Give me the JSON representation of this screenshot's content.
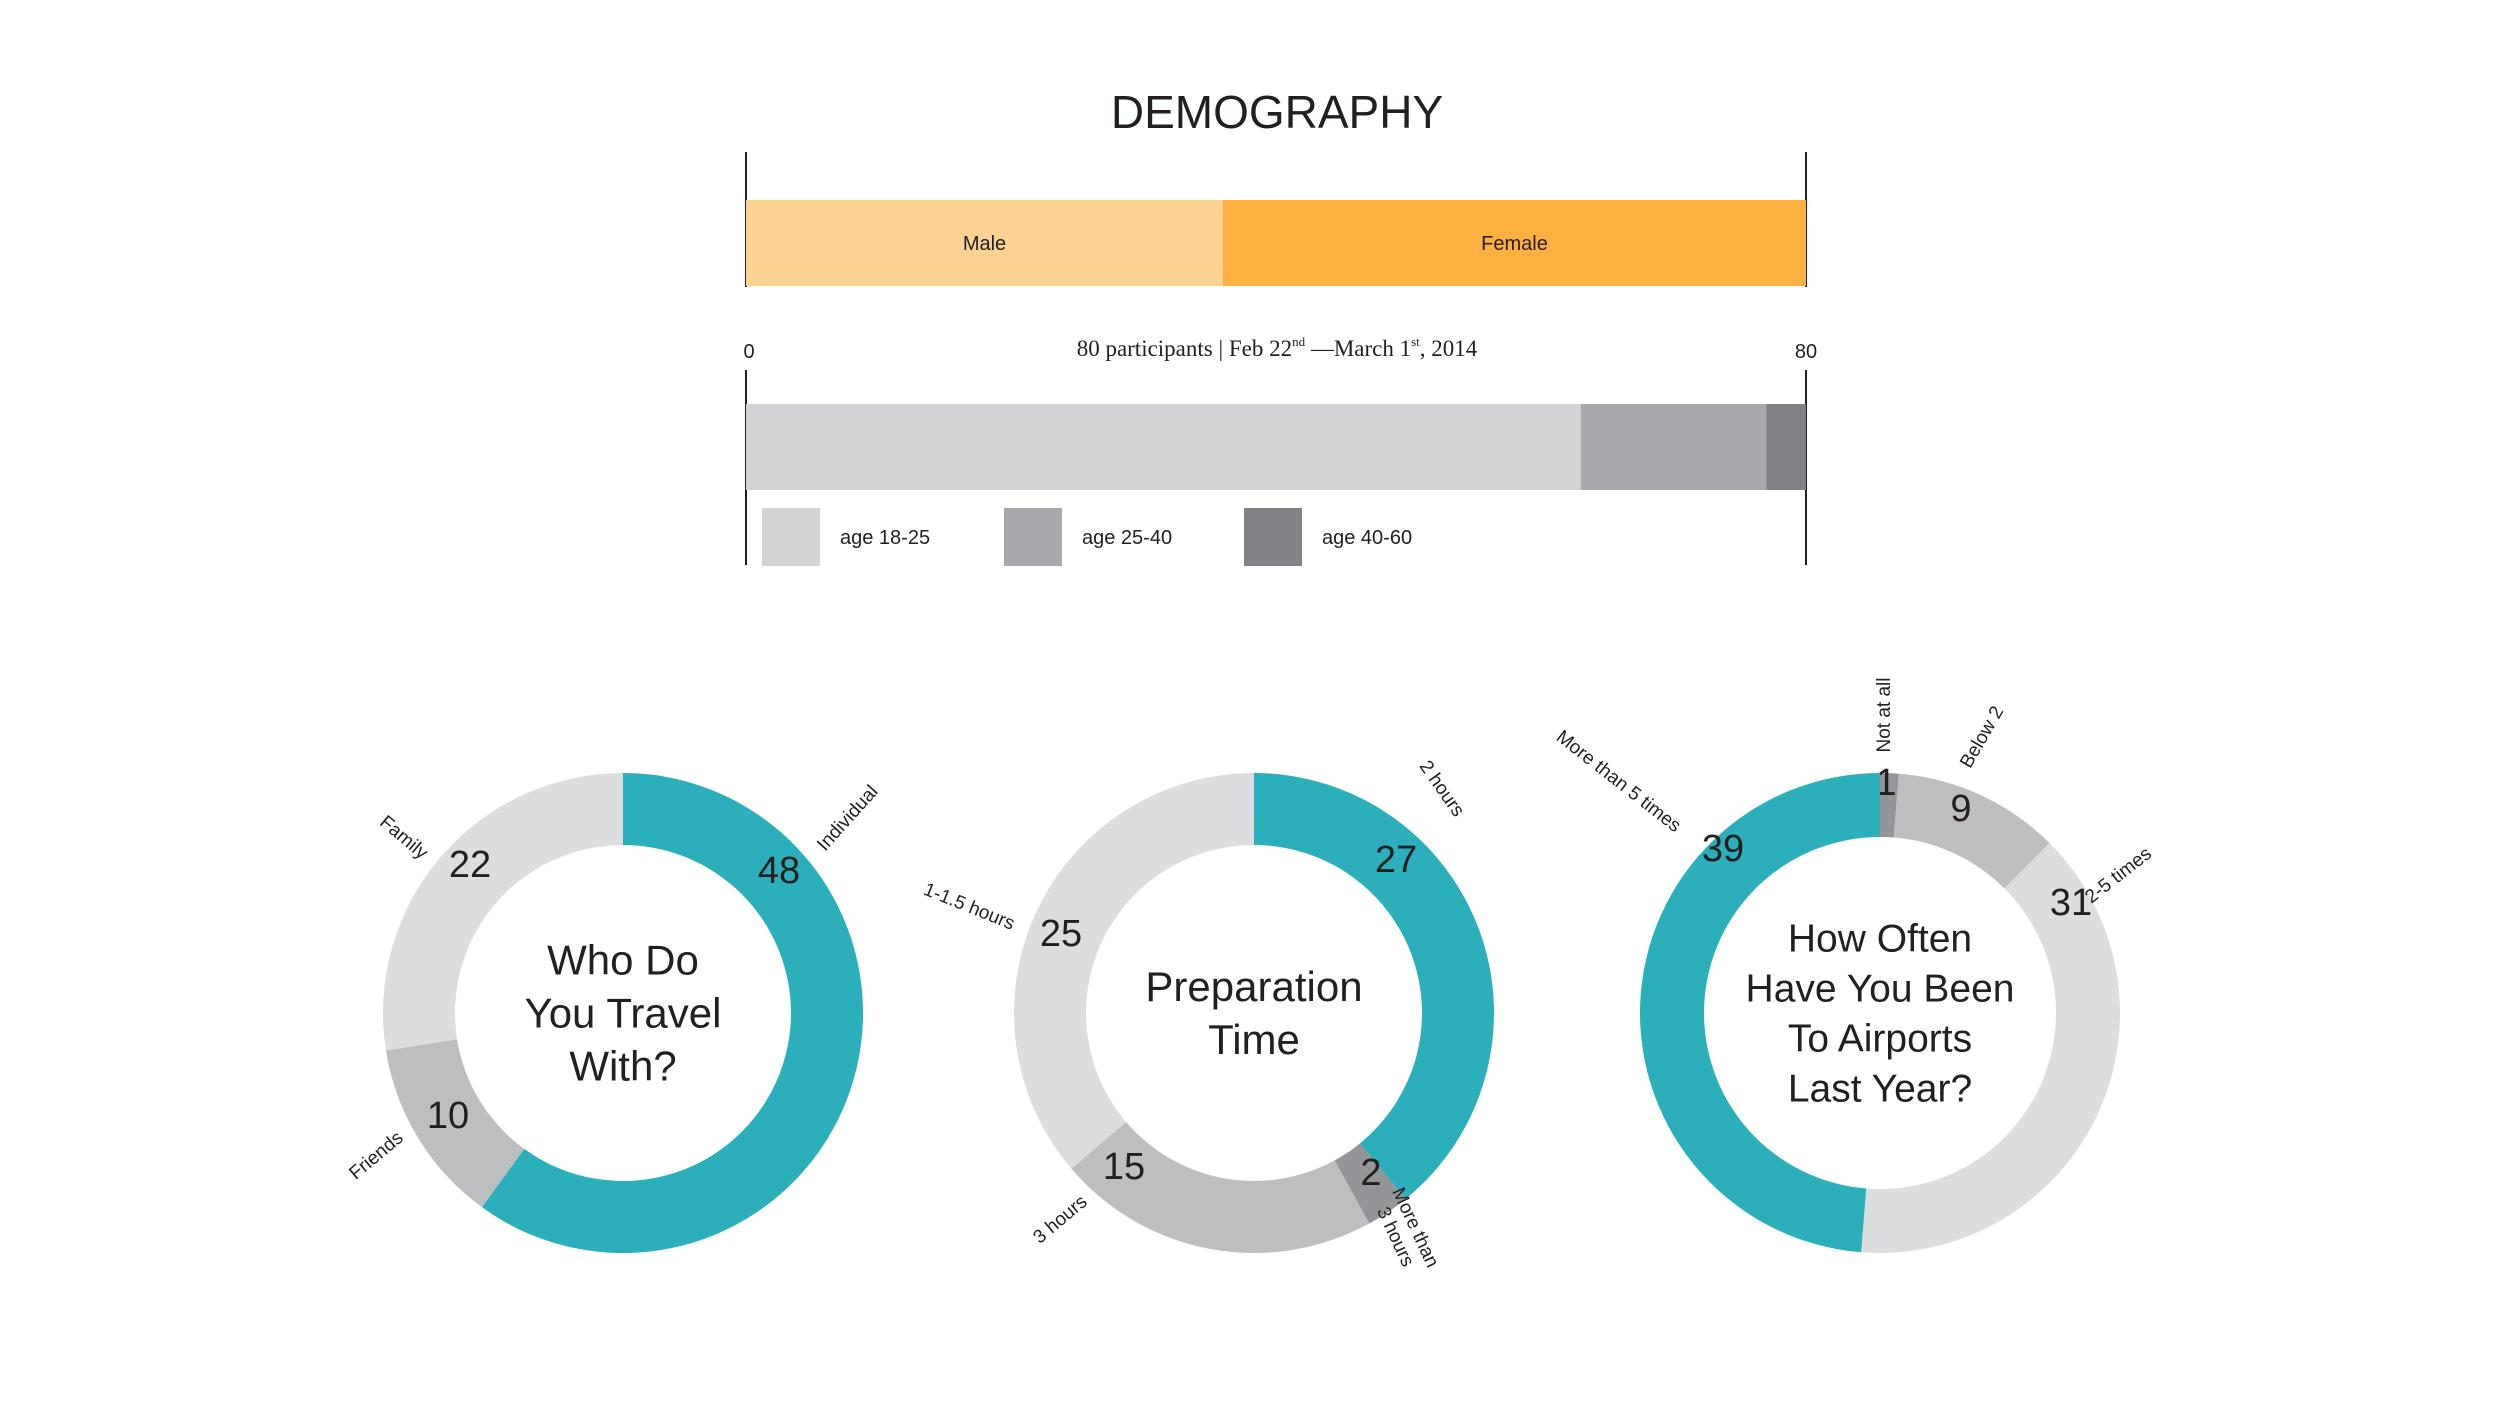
{
  "colors": {
    "male": "#fcd293",
    "female": "#fbb040",
    "age_18_25": "#d1d3d4",
    "age_25_40": "#a7a9ac",
    "age_40_60": "#808285",
    "teal": "#2aafbb",
    "light_gray": "#dcddde",
    "mid_gray": "#bcbec0",
    "dark_gray": "#939598",
    "text": "#231f20"
  },
  "demography": {
    "title": "DEMOGRAPHY",
    "subtitle_parts": [
      "80 participants | Feb 22",
      "nd",
      " —March 1",
      "st",
      ", 2014"
    ],
    "axis_min_label": "0",
    "axis_max_label": "80"
  },
  "chart_data": [
    {
      "type": "bar",
      "orientation": "horizontal-stacked",
      "xlim": [
        0,
        80
      ],
      "categories": [
        "Male",
        "Female"
      ],
      "values": [
        36,
        44
      ]
    },
    {
      "type": "bar",
      "orientation": "horizontal-stacked",
      "xlim": [
        0,
        80
      ],
      "categories": [
        "age 18-25",
        "age 25-40",
        "age 40-60"
      ],
      "values": [
        63,
        14,
        3
      ],
      "legend": "bottom-left"
    },
    {
      "type": "pie",
      "donut": true,
      "center_label": "Who Do You Travel With?",
      "categories": [
        "Individual",
        "Friends",
        "Family"
      ],
      "values": [
        48,
        10,
        22
      ]
    },
    {
      "type": "pie",
      "donut": true,
      "center_label": "Preparation Time",
      "categories": [
        "2 hours",
        "More than 3 hours",
        "3 hours",
        "1-1.5 hours"
      ],
      "values": [
        27,
        2,
        15,
        25
      ]
    },
    {
      "type": "pie",
      "donut": true,
      "center_label": "How Often Have You Been To Airports Last Year?",
      "categories": [
        "Not at all",
        "Below 2",
        "2-5 times",
        "More than 5 times"
      ],
      "values": [
        1,
        9,
        31,
        39
      ]
    }
  ],
  "donut_titles": [
    [
      "Who Do",
      "You Travel",
      "With?"
    ],
    [
      "Preparation",
      "Time"
    ],
    [
      "How Often",
      "Have You Been",
      "To Airports",
      "Last Year?"
    ]
  ],
  "donut_label_lines": [
    [
      [
        "Individual"
      ],
      [
        "Friends"
      ],
      [
        "Family"
      ]
    ],
    [
      [
        "2 hours"
      ],
      [
        "More than",
        "3 hours"
      ],
      [
        "3 hours"
      ],
      [
        "1-1.5 hours"
      ]
    ],
    [
      [
        "Not at all"
      ],
      [
        "Below 2"
      ],
      [
        "2-5 times"
      ],
      [
        "More than 5 times"
      ]
    ]
  ],
  "donut_colors": [
    [
      "teal",
      "mid_gray",
      "light_gray"
    ],
    [
      "teal",
      "dark_gray",
      "mid_gray",
      "light_gray"
    ],
    [
      "dark_gray",
      "mid_gray",
      "light_gray",
      "teal"
    ]
  ]
}
